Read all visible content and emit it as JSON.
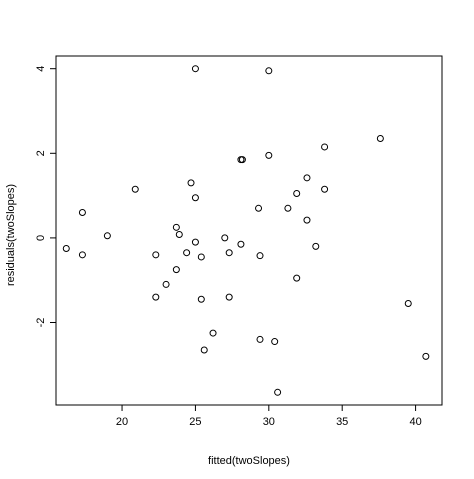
{
  "chart_data": {
    "type": "scatter",
    "title": "",
    "xlabel": "fitted(twoSlopes)",
    "ylabel": "residuals(twoSlopes)",
    "xlim": [
      15.5,
      41.8
    ],
    "ylim": [
      -3.95,
      4.3
    ],
    "xticks": [
      20,
      25,
      30,
      35,
      40
    ],
    "yticks": [
      -2,
      0,
      2,
      4
    ],
    "xtick_labels": [
      "20",
      "25",
      "30",
      "35",
      "40"
    ],
    "ytick_labels": [
      "-2",
      "0",
      "2",
      "4"
    ],
    "grid": false,
    "legend": "none",
    "marker": "open-circle",
    "color": "#000000",
    "points": [
      {
        "x": 16.2,
        "y": -0.25
      },
      {
        "x": 17.3,
        "y": 0.6
      },
      {
        "x": 17.3,
        "y": -0.4
      },
      {
        "x": 19.0,
        "y": 0.05
      },
      {
        "x": 20.9,
        "y": 1.15
      },
      {
        "x": 22.3,
        "y": -0.4
      },
      {
        "x": 22.3,
        "y": -1.4
      },
      {
        "x": 23.0,
        "y": -1.1
      },
      {
        "x": 23.7,
        "y": 0.25
      },
      {
        "x": 23.7,
        "y": -0.75
      },
      {
        "x": 23.9,
        "y": 0.08
      },
      {
        "x": 24.4,
        "y": -0.35
      },
      {
        "x": 24.7,
        "y": 1.3
      },
      {
        "x": 25.0,
        "y": 0.95
      },
      {
        "x": 25.0,
        "y": -0.1
      },
      {
        "x": 25.0,
        "y": 4.0
      },
      {
        "x": 25.4,
        "y": -0.45
      },
      {
        "x": 25.4,
        "y": -1.45
      },
      {
        "x": 25.6,
        "y": -2.65
      },
      {
        "x": 26.2,
        "y": -2.25
      },
      {
        "x": 27.0,
        "y": 0.0
      },
      {
        "x": 27.3,
        "y": -0.35
      },
      {
        "x": 27.3,
        "y": -1.4
      },
      {
        "x": 28.1,
        "y": -0.15
      },
      {
        "x": 28.1,
        "y": 1.85
      },
      {
        "x": 28.2,
        "y": 1.85
      },
      {
        "x": 29.3,
        "y": 0.7
      },
      {
        "x": 29.4,
        "y": -0.42
      },
      {
        "x": 29.4,
        "y": -2.4
      },
      {
        "x": 30.0,
        "y": 3.95
      },
      {
        "x": 30.0,
        "y": 1.95
      },
      {
        "x": 30.4,
        "y": -2.45
      },
      {
        "x": 30.6,
        "y": -3.65
      },
      {
        "x": 31.3,
        "y": 0.7
      },
      {
        "x": 31.9,
        "y": 1.05
      },
      {
        "x": 31.9,
        "y": -0.95
      },
      {
        "x": 32.6,
        "y": 1.42
      },
      {
        "x": 32.6,
        "y": 0.42
      },
      {
        "x": 33.2,
        "y": -0.2
      },
      {
        "x": 33.8,
        "y": 2.15
      },
      {
        "x": 33.8,
        "y": 1.15
      },
      {
        "x": 37.6,
        "y": 2.35
      },
      {
        "x": 39.5,
        "y": -1.55
      },
      {
        "x": 40.7,
        "y": -2.8
      }
    ]
  }
}
